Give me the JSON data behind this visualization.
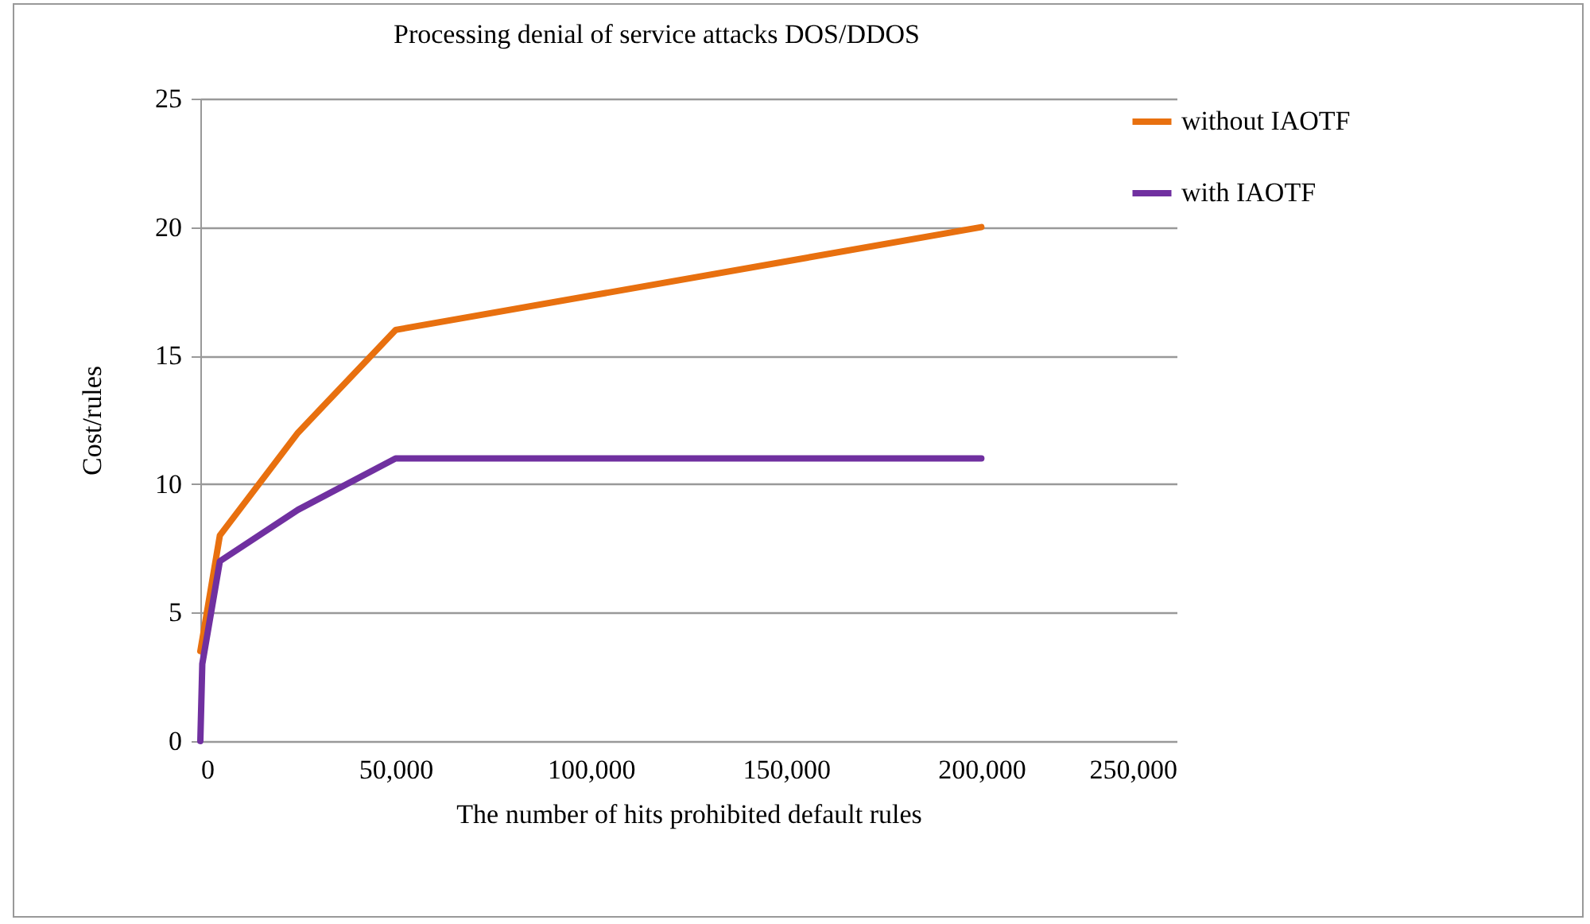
{
  "chart_data": {
    "type": "line",
    "title": "Processing denial of service attacks DOS/DDOS",
    "xlabel": "The number of hits prohibited default rules",
    "ylabel": "Cost/rules",
    "series": [
      {
        "name": "without IAOTF",
        "color": "#e8700f",
        "x": [
          0,
          5000,
          25000,
          50000,
          200000
        ],
        "values": [
          3.5,
          8,
          12,
          16,
          20
        ]
      },
      {
        "name": "with IAOTF",
        "color": "#7030a0",
        "x": [
          0,
          500,
          5000,
          25000,
          50000,
          200000
        ],
        "values": [
          0,
          3,
          7,
          9,
          11,
          11
        ]
      }
    ],
    "xlim": [
      0,
      250000
    ],
    "xticks": [
      0,
      {
        "value": 50000,
        "label": "50,000"
      },
      {
        "value": 100000,
        "label": "100,000"
      },
      {
        "value": 150000,
        "label": "150,000"
      },
      {
        "value": 200000,
        "label": "200,000"
      },
      {
        "value": 250000,
        "label": "250,000"
      }
    ],
    "ylim": [
      0,
      25
    ],
    "yticks": [
      0,
      5,
      10,
      15,
      20,
      25
    ],
    "grid": "y",
    "legend": "right",
    "marker": "none",
    "line_style": "solid"
  }
}
